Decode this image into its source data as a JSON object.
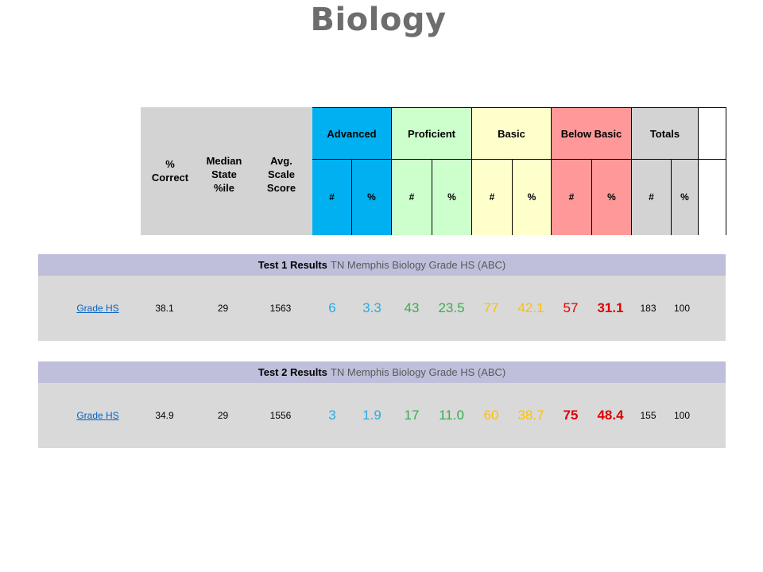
{
  "title": "Biology",
  "header": {
    "pct_correct": "% Correct",
    "median_state": "Median State %ile",
    "avg_scale": "Avg. Scale Score",
    "groups": [
      {
        "label": "Advanced",
        "color": "#00b0f0"
      },
      {
        "label": "Proficient",
        "color": "#ccffcc"
      },
      {
        "label": "Basic",
        "color": "#ffffcc"
      },
      {
        "label": "Below Basic",
        "color": "#ff9999"
      },
      {
        "label": "Totals",
        "color": "#d3d3d3"
      }
    ],
    "sub_labels": [
      "#",
      "%",
      "#",
      "%",
      "#",
      "%",
      "#",
      "%",
      "#",
      "%"
    ]
  },
  "results": [
    {
      "title_bold": "Test 1 Results",
      "title_rest": "TN Memphis Biology Grade HS (ABC)",
      "row": {
        "grade": "Grade HS",
        "pct_correct": "38.1",
        "median": "29",
        "scale": "1563",
        "adv_n": "6",
        "adv_p": "3.3",
        "pro_n": "43",
        "pro_p": "23.5",
        "bas_n": "77",
        "bas_p": "42.1",
        "bel_n": "57",
        "bel_p": "31.1",
        "tot_n": "183",
        "tot_p": "100"
      }
    },
    {
      "title_bold": "Test 2 Results",
      "title_rest": "TN Memphis Biology Grade HS (ABC)",
      "row": {
        "grade": "Grade HS",
        "pct_correct": "34.9",
        "median": "29",
        "scale": "1556",
        "adv_n": "3",
        "adv_p": "1.9",
        "pro_n": "17",
        "pro_p": "11.0",
        "bas_n": "60",
        "bas_p": "38.7",
        "bel_n": "75",
        "bel_p": "48.4",
        "tot_n": "155",
        "tot_p": "100"
      }
    }
  ],
  "colors": {
    "advanced": "#29abe2",
    "proficient": "#33b050",
    "basic": "#ffc000",
    "below_basic": "#e00000",
    "link": "#0563c1"
  }
}
